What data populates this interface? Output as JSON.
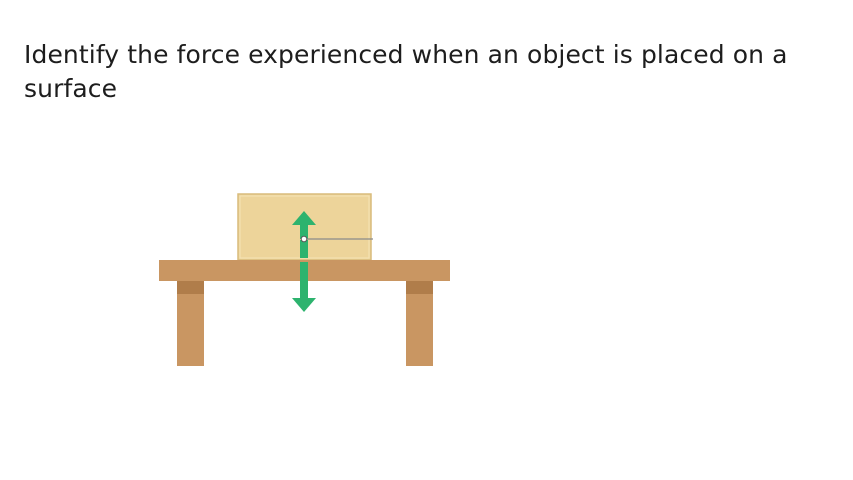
{
  "question": {
    "text": "Identify the force experienced when an object is placed on a surface"
  },
  "diagram": {
    "objects": [
      "box",
      "table",
      "force-arrow-up",
      "force-arrow-down",
      "label-leader-line"
    ],
    "colors": {
      "box_fill": "#EDD49A",
      "box_edge": "#D9BC7C",
      "table_top": "#C99662",
      "table_leg": "#C99662",
      "leg_shadow": "#B07D4A",
      "arrow": "#2DB36E",
      "leader_line": "#8A8A8A"
    }
  }
}
